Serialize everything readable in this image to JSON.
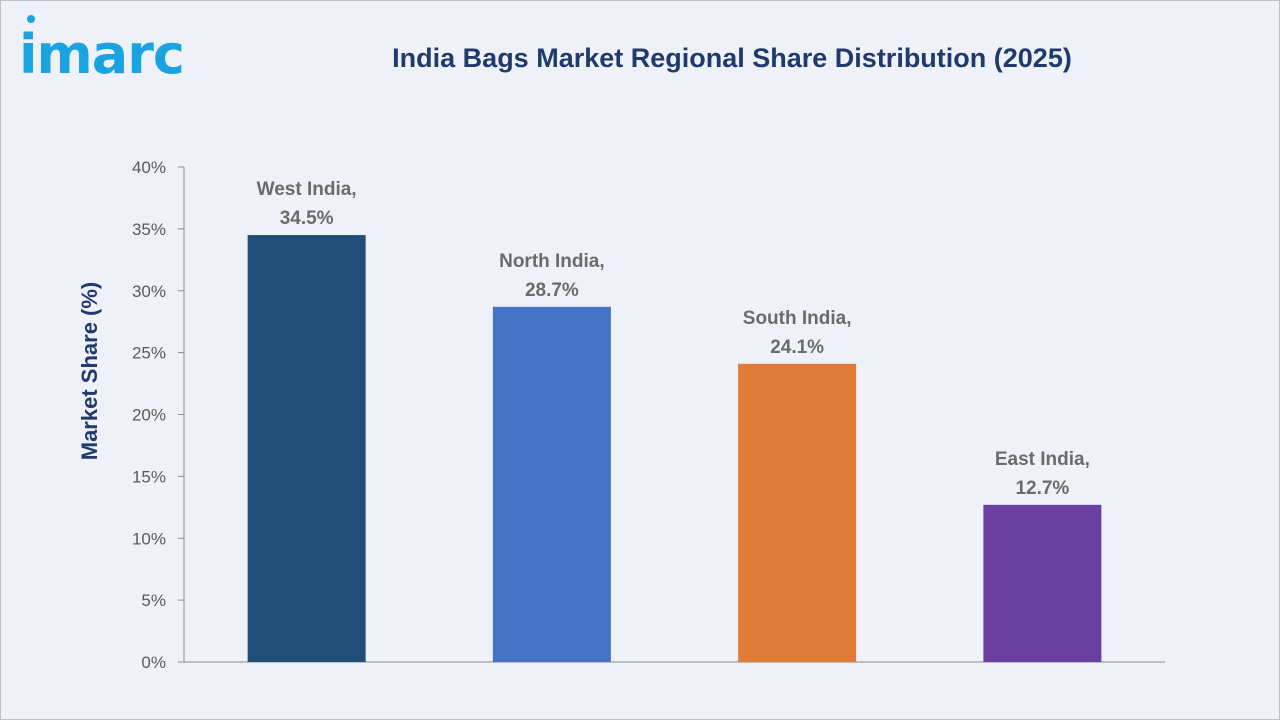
{
  "brand": {
    "name": "imarc",
    "color": "#1aa3e0"
  },
  "chart_data": {
    "type": "bar",
    "title": "India Bags Market Regional Share Distribution (2025)",
    "ylabel": "Market Share (%)",
    "xlabel": "",
    "categories": [
      "West India",
      "North India",
      "South India",
      "East India"
    ],
    "values": [
      34.5,
      28.7,
      24.1,
      12.7
    ],
    "data_labels": [
      [
        "West India,",
        "34.5%"
      ],
      [
        "North India,",
        "28.7%"
      ],
      [
        "South India,",
        "24.1%"
      ],
      [
        "East India,",
        "12.7%"
      ]
    ],
    "colors": [
      "#1f4e79",
      "#4472c4",
      "#e07b39",
      "#6b3fa0"
    ],
    "ylim": [
      0,
      40
    ],
    "yticks": [
      0,
      5,
      10,
      15,
      20,
      25,
      30,
      35,
      40
    ],
    "ytick_labels": [
      "0%",
      "5%",
      "10%",
      "15%",
      "20%",
      "25%",
      "30%",
      "35%",
      "40%"
    ],
    "grid": false,
    "legend": "none"
  }
}
